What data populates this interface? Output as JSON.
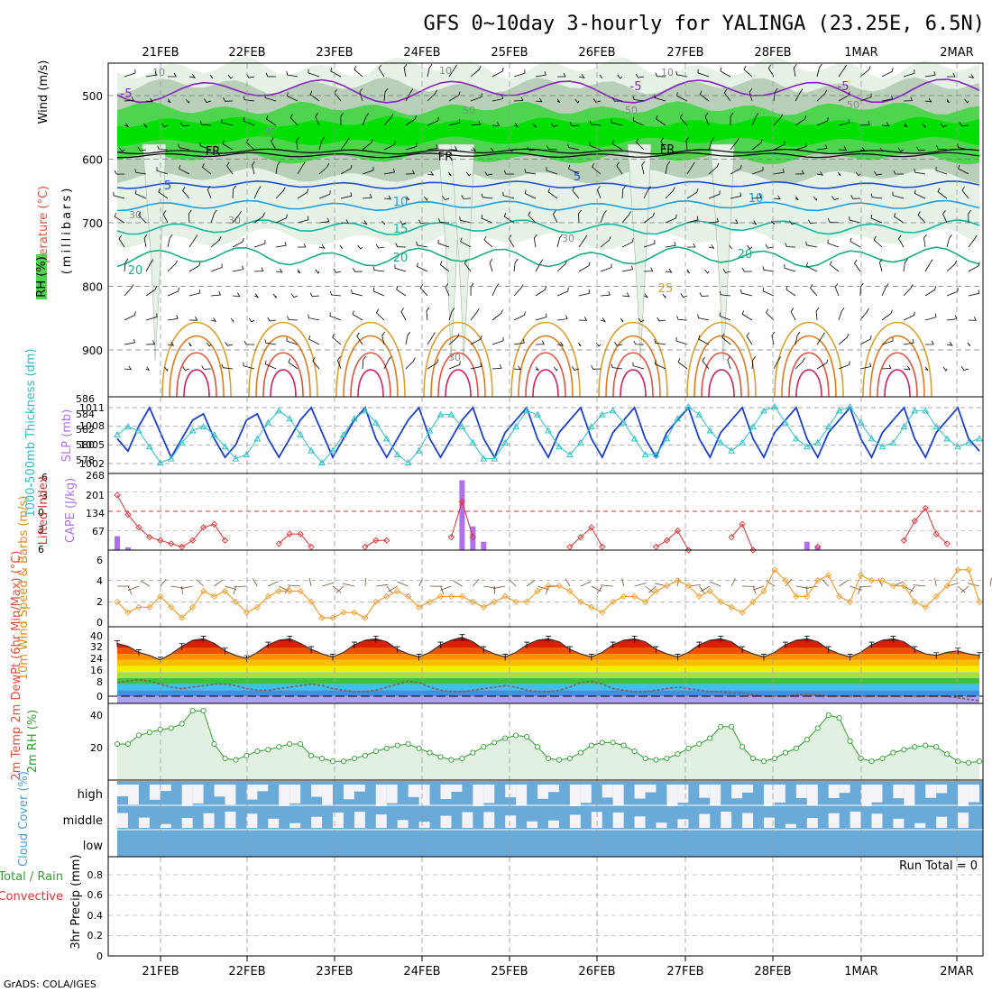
{
  "title": "GFS 0~10day 3-hourly for YALINGA (23.25E, 6.5N)",
  "footer": "GrADS: COLA/IGES",
  "date_labels": [
    "21FEB",
    "22FEB",
    "23FEB",
    "24FEB",
    "25FEB",
    "26FEB",
    "27FEB",
    "28FEB",
    "1MAR",
    "2MAR"
  ],
  "colors": {
    "frame": "#000000",
    "grid": "#9a9a9a",
    "rh_light": "#e6f2e6",
    "rh_mid": "#b9cfb9",
    "rh_green": "#4fd44f",
    "rh_bright": "#00e000",
    "slp": "#1a3fd0",
    "thickness": "#30c0c8",
    "li": "#e03030",
    "cape": "#b070f0",
    "wind": "#f0a030",
    "rh2m": "#30a030",
    "cloud": "#6aaad8",
    "cloud_gap": "#f4f4f8"
  },
  "upper_panel": {
    "side_label": [
      "RH (%)",
      "Temperature (°C)",
      "Wind (m/s)"
    ],
    "axis_label": "(millibars)",
    "yticks": [
      500,
      600,
      700,
      800,
      900
    ],
    "contour_labels": [
      "-5",
      "-5",
      "-5",
      "FR",
      "FR",
      "FR",
      "5",
      "5",
      "10",
      "10",
      "15",
      "20",
      "20",
      "20",
      "25",
      "10",
      "10",
      "10",
      "50",
      "50",
      "50",
      "50",
      "30",
      "30",
      "30",
      "30"
    ]
  },
  "chart_data": [
    {
      "type": "line",
      "panel": "thickness_slp",
      "left_label": "1000-500mb Thickness (dm)",
      "right_label": "SLP (mb)",
      "left_ticks": [
        "586",
        "584",
        "582",
        "580",
        "578"
      ],
      "right_ticks": [
        "1011",
        "1008",
        "1005",
        "1002"
      ],
      "series": [
        {
          "name": "SLP",
          "values": [
            1006,
            1004,
            1008,
            1011,
            1007,
            1003,
            1006,
            1009,
            1010,
            1006,
            1003,
            1005,
            1009,
            1010,
            1006,
            1003,
            1006,
            1009,
            1011,
            1007,
            1003,
            1006,
            1009,
            1011,
            1006,
            1003,
            1006,
            1009,
            1011,
            1006,
            1003,
            1006,
            1009,
            1011,
            1006,
            1003,
            1007,
            1009,
            1011,
            1006,
            1003,
            1007,
            1009,
            1011,
            1006,
            1003,
            1007,
            1009,
            1011,
            1006,
            1003,
            1007,
            1009,
            1011,
            1006,
            1003,
            1007,
            1009,
            1011,
            1006,
            1003,
            1007,
            1009,
            1011,
            1006,
            1003,
            1007,
            1009,
            1011,
            1006,
            1003,
            1007,
            1009,
            1011,
            1006,
            1003,
            1007,
            1009,
            1011,
            1006,
            1004
          ]
        },
        {
          "name": "Thickness",
          "values": [
            581.5,
            582.5,
            582.0,
            580.0,
            578.0,
            578.5,
            580.5,
            582.0,
            582.5,
            581.5,
            580.0,
            578.5,
            579.0,
            581.0,
            583.0,
            584.5,
            583.5,
            581.5,
            579.5,
            578.0,
            579.5,
            581.5,
            583.5,
            584.5,
            583.0,
            581.0,
            579.0,
            578.0,
            579.5,
            582.0,
            584.0,
            584.0,
            582.5,
            580.5,
            578.5,
            578.5,
            580.5,
            582.5,
            584.5,
            584.0,
            582.0,
            580.0,
            579.0,
            580.5,
            582.5,
            584.0,
            584.5,
            583.0,
            581.0,
            579.0,
            579.0,
            581.0,
            583.5,
            585.0,
            584.0,
            582.0,
            580.5,
            579.5,
            580.5,
            582.5,
            584.5,
            585.0,
            583.0,
            581.0,
            580.0,
            580.5,
            582.5,
            584.5,
            585.0,
            583.0,
            581.0,
            580.0,
            580.5,
            582.5,
            584.5,
            584.5,
            582.5,
            581.0,
            580.0,
            580.5,
            581.0
          ]
        }
      ]
    },
    {
      "type": "line+bar",
      "panel": "li_cape",
      "left_label": "Lifted Index",
      "right_label": "CAPE (J/kg)",
      "left_ticks": [
        "-6",
        "-3",
        "0",
        "3",
        "6"
      ],
      "right_ticks": [
        "268",
        "201",
        "134",
        "67"
      ],
      "series": [
        {
          "name": "Lifted Index",
          "values": [
            -2.5,
            0.5,
            2.5,
            4.0,
            4.5,
            5.0,
            5.5,
            4.5,
            2.5,
            2.0,
            4.5,
            7,
            7,
            7,
            7,
            5,
            3.5,
            3.5,
            5.5,
            7,
            7,
            7,
            7,
            5.5,
            4.5,
            4.5,
            7,
            7,
            7,
            7,
            7,
            4.0,
            -1.5,
            4.0,
            7,
            7,
            7,
            7,
            7,
            7,
            7,
            7,
            5.5,
            4.0,
            2.5,
            5.5,
            7,
            7,
            7,
            7,
            5.5,
            4.5,
            3.0,
            6.0,
            7,
            7,
            7,
            4.0,
            2.0,
            6.0,
            7,
            7,
            7,
            7,
            7,
            5.5,
            7,
            7,
            7,
            7,
            7,
            7,
            7,
            4.5,
            1.5,
            -0.5,
            3.5,
            5.0,
            7,
            7,
            7
          ]
        },
        {
          "name": "CAPE",
          "values": [
            50,
            10,
            0,
            0,
            0,
            0,
            0,
            0,
            0,
            0,
            0,
            0,
            0,
            0,
            0,
            0,
            0,
            0,
            0,
            0,
            0,
            0,
            0,
            0,
            0,
            0,
            0,
            0,
            0,
            0,
            0,
            0,
            250,
            85,
            30,
            0,
            0,
            0,
            0,
            0,
            0,
            0,
            0,
            0,
            0,
            0,
            0,
            0,
            0,
            0,
            0,
            0,
            0,
            0,
            0,
            0,
            0,
            0,
            0,
            0,
            0,
            0,
            0,
            0,
            30,
            15,
            0,
            0,
            0,
            0,
            0,
            0,
            0,
            0,
            0,
            0,
            0,
            0,
            0,
            0,
            0
          ]
        }
      ]
    },
    {
      "type": "line",
      "panel": "wind10m",
      "left_label": "10m Wind Speed & Barbs (m/s)",
      "ticks": [
        "6",
        "4",
        "2",
        "0"
      ],
      "series": [
        {
          "name": "10m Wind Speed",
          "values": [
            2.0,
            1.0,
            1.5,
            1.5,
            2.5,
            1.5,
            0.5,
            1.5,
            3.0,
            2.5,
            3.0,
            2.0,
            1.0,
            1.5,
            2.5,
            3.0,
            3.0,
            3.0,
            2.0,
            0.5,
            0.5,
            1.0,
            1.0,
            0.5,
            2.0,
            2.5,
            3.0,
            2.5,
            1.5,
            2.0,
            2.5,
            2.5,
            2.5,
            2.0,
            1.5,
            2.0,
            2.5,
            2.0,
            2.0,
            3.0,
            3.5,
            3.5,
            3.0,
            2.0,
            1.5,
            1.0,
            2.0,
            2.5,
            2.5,
            2.0,
            3.0,
            3.5,
            4.0,
            3.5,
            2.5,
            3.0,
            2.0,
            1.5,
            1.0,
            2.0,
            3.0,
            5.0,
            4.0,
            2.5,
            2.5,
            4.0,
            4.5,
            2.5,
            2.0,
            4.5,
            4.0,
            4.0,
            3.5,
            3.5,
            2.0,
            1.5,
            2.5,
            3.5,
            5.0,
            5.0,
            2.0,
            2.0,
            3.5,
            4.5,
            5.0
          ]
        }
      ]
    },
    {
      "type": "area",
      "panel": "temp2m",
      "left_label": "2m Temp 2m DewPt (6hr Min/Max) (°C)",
      "ticks": [
        "40",
        "32",
        "24",
        "16",
        "8",
        "0"
      ],
      "series": [
        {
          "name": "2m Temp",
          "values": [
            35,
            33,
            29,
            27,
            24,
            28,
            33,
            37,
            38,
            35,
            30,
            27,
            25,
            29,
            34,
            37,
            38,
            35,
            31,
            28,
            26,
            29,
            34,
            37,
            38,
            36,
            31,
            28,
            26,
            29,
            34,
            37,
            39,
            36,
            31,
            28,
            26,
            29,
            34,
            37,
            38,
            36,
            31,
            28,
            26,
            29,
            34,
            37,
            38,
            36,
            31,
            28,
            26,
            29,
            34,
            37,
            38,
            36,
            31,
            28,
            26,
            29,
            34,
            37,
            38,
            36,
            31,
            28,
            26,
            29,
            34,
            37,
            38,
            36,
            31,
            28,
            27,
            29,
            30,
            28,
            27
          ]
        },
        {
          "name": "2m DewPt",
          "values": [
            9,
            10,
            11,
            10,
            8,
            6,
            5,
            6,
            7,
            8,
            8,
            7,
            5,
            4,
            4,
            5,
            6,
            7,
            8,
            7,
            5,
            4,
            3,
            3,
            4,
            6,
            8,
            10,
            9,
            6,
            4,
            3,
            3,
            4,
            5,
            6,
            7,
            6,
            4,
            3,
            3,
            4,
            6,
            9,
            10,
            8,
            5,
            4,
            3,
            3,
            4,
            5,
            6,
            5,
            4,
            3,
            3,
            2,
            2,
            1,
            0,
            0,
            0,
            1,
            1,
            1,
            0,
            0,
            0,
            0,
            0,
            0,
            0,
            0,
            0,
            0,
            0,
            0,
            -1,
            -2,
            -3
          ]
        }
      ]
    },
    {
      "type": "area",
      "panel": "rh2m",
      "left_label": "2m RH (%)",
      "ticks": [
        "40",
        "20"
      ],
      "series": [
        {
          "name": "2m RH",
          "values": [
            20,
            20,
            26,
            28,
            30,
            31,
            34,
            43,
            43,
            20,
            10,
            9,
            12,
            15,
            16,
            18,
            20,
            20,
            12,
            10,
            8,
            8,
            10,
            12,
            15,
            17,
            19,
            20,
            17,
            14,
            11,
            9,
            10,
            14,
            18,
            21,
            24,
            26,
            25,
            18,
            10,
            9,
            10,
            14,
            19,
            21,
            21,
            19,
            15,
            10,
            9,
            10,
            13,
            17,
            20,
            24,
            32,
            32,
            18,
            10,
            8,
            10,
            14,
            17,
            23,
            31,
            40,
            38,
            22,
            10,
            8,
            10,
            14,
            16,
            18,
            19,
            18,
            13,
            8,
            7,
            8,
            11,
            15,
            16,
            18,
            20,
            18,
            13,
            9,
            8,
            11,
            14,
            17,
            20,
            18,
            14,
            12
          ]
        }
      ]
    },
    {
      "type": "bar",
      "panel": "cloud",
      "left_label": "Cloud Cover (%)",
      "levels": [
        "high",
        "middle",
        "low"
      ]
    },
    {
      "type": "bar",
      "panel": "precip",
      "left_label": "3hr Precip (mm)",
      "legend_left": "Total / Rain",
      "legend_left2": "Convective",
      "annotation": "Run Total = 0",
      "ticks": [
        "0.8",
        "0.6",
        "0.4",
        "0.2",
        "0"
      ]
    }
  ]
}
